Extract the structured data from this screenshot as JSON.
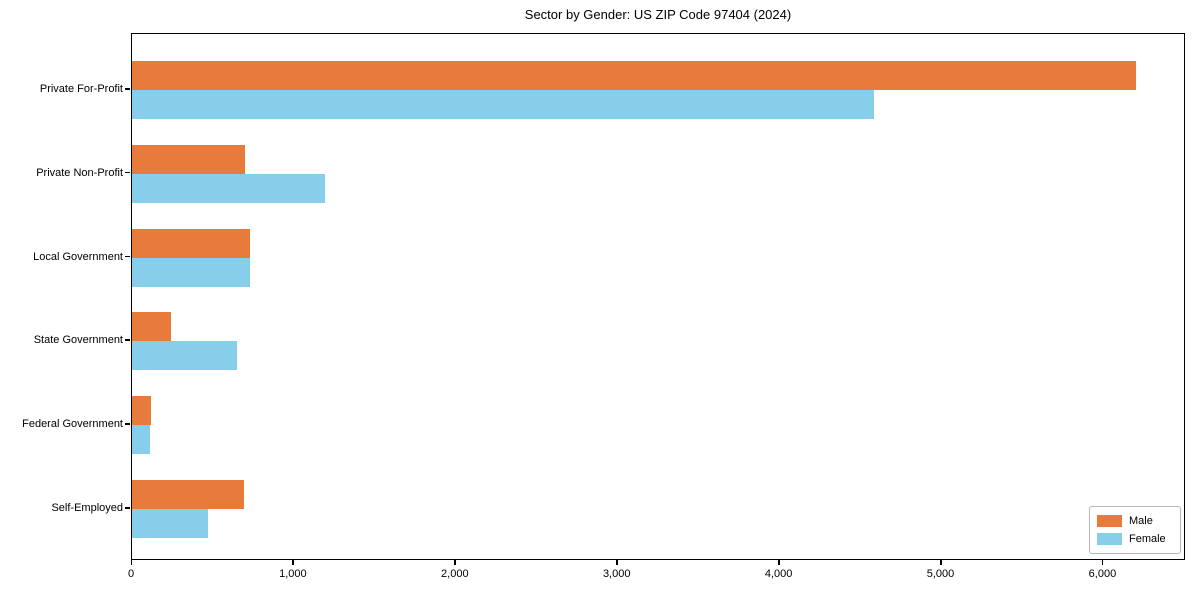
{
  "chart_data": {
    "type": "bar",
    "orientation": "horizontal",
    "title": "Sector by Gender: US ZIP Code 97404 (2024)",
    "categories": [
      "Private For-Profit",
      "Private Non-Profit",
      "Local Government",
      "State Government",
      "Federal Government",
      "Self-Employed"
    ],
    "series": [
      {
        "name": "Male",
        "color": "#E87A3C",
        "values": [
          6200,
          700,
          730,
          240,
          120,
          690
        ]
      },
      {
        "name": "Female",
        "color": "#87CEEB",
        "values": [
          4580,
          1190,
          730,
          650,
          110,
          470
        ]
      }
    ],
    "xlabel": "",
    "ylabel": "",
    "xlim": [
      0,
      6510
    ],
    "xticks": [
      0,
      1000,
      2000,
      3000,
      4000,
      5000,
      6000
    ],
    "xtick_labels": [
      "0",
      "1,000",
      "2,000",
      "3,000",
      "4,000",
      "5,000",
      "6,000"
    ],
    "grid": false,
    "legend_position": "lower right"
  },
  "layout_colors": {
    "axis": "#000000",
    "background": "#ffffff"
  }
}
